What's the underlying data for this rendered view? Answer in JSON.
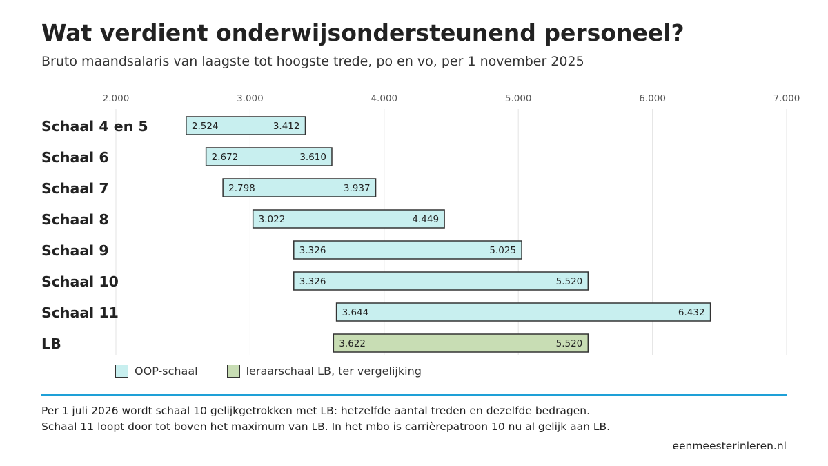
{
  "header": {
    "title": "Wat verdient onderwijsondersteunend personeel?",
    "subtitle": "Bruto maandsalaris van laagste tot hoogste trede, po en vo, per 1 november 2025"
  },
  "chart_data": {
    "type": "bar",
    "orientation": "horizontal-range",
    "x_ticks": [
      "2.000",
      "3.000",
      "4.000",
      "5.000",
      "6.000",
      "7.000"
    ],
    "xlim": [
      2000,
      7000
    ],
    "grid": true,
    "categories": [
      "Schaal 4 en 5",
      "Schaal 6",
      "Schaal 7",
      "Schaal 8",
      "Schaal 9",
      "Schaal 10",
      "Schaal 11",
      "LB"
    ],
    "series": [
      {
        "name": "OOP-schaal",
        "color": "#c8efef",
        "items": [
          {
            "category": "Schaal 4 en 5",
            "min": 2524,
            "max": 3412,
            "min_label": "2.524",
            "max_label": "3.412"
          },
          {
            "category": "Schaal 6",
            "min": 2672,
            "max": 3610,
            "min_label": "2.672",
            "max_label": "3.610"
          },
          {
            "category": "Schaal 7",
            "min": 2798,
            "max": 3937,
            "min_label": "2.798",
            "max_label": "3.937"
          },
          {
            "category": "Schaal 8",
            "min": 3022,
            "max": 4449,
            "min_label": "3.022",
            "max_label": "4.449"
          },
          {
            "category": "Schaal 9",
            "min": 3326,
            "max": 5025,
            "min_label": "3.326",
            "max_label": "5.025"
          },
          {
            "category": "Schaal 10",
            "min": 3326,
            "max": 5520,
            "min_label": "3.326",
            "max_label": "5.520"
          },
          {
            "category": "Schaal 11",
            "min": 3644,
            "max": 6432,
            "min_label": "3.644",
            "max_label": "6.432"
          }
        ]
      },
      {
        "name": "leraarschaal LB, ter vergelijking",
        "color": "#c8ddb4",
        "items": [
          {
            "category": "LB",
            "min": 3622,
            "max": 5520,
            "min_label": "3.622",
            "max_label": "5.520"
          }
        ]
      }
    ]
  },
  "footer": {
    "note_line1": "Per 1 juli 2026 wordt schaal 10 gelijkgetrokken met LB: hetzelfde aantal treden en dezelfde bedragen.",
    "note_line2": "Schaal 11 loopt door tot boven het maximum van LB. In het mbo is carrièrepatroon 10 nu al gelijk aan LB.",
    "source": "eenmeesterinleren.nl",
    "rule_color": "#1ea0d7"
  }
}
